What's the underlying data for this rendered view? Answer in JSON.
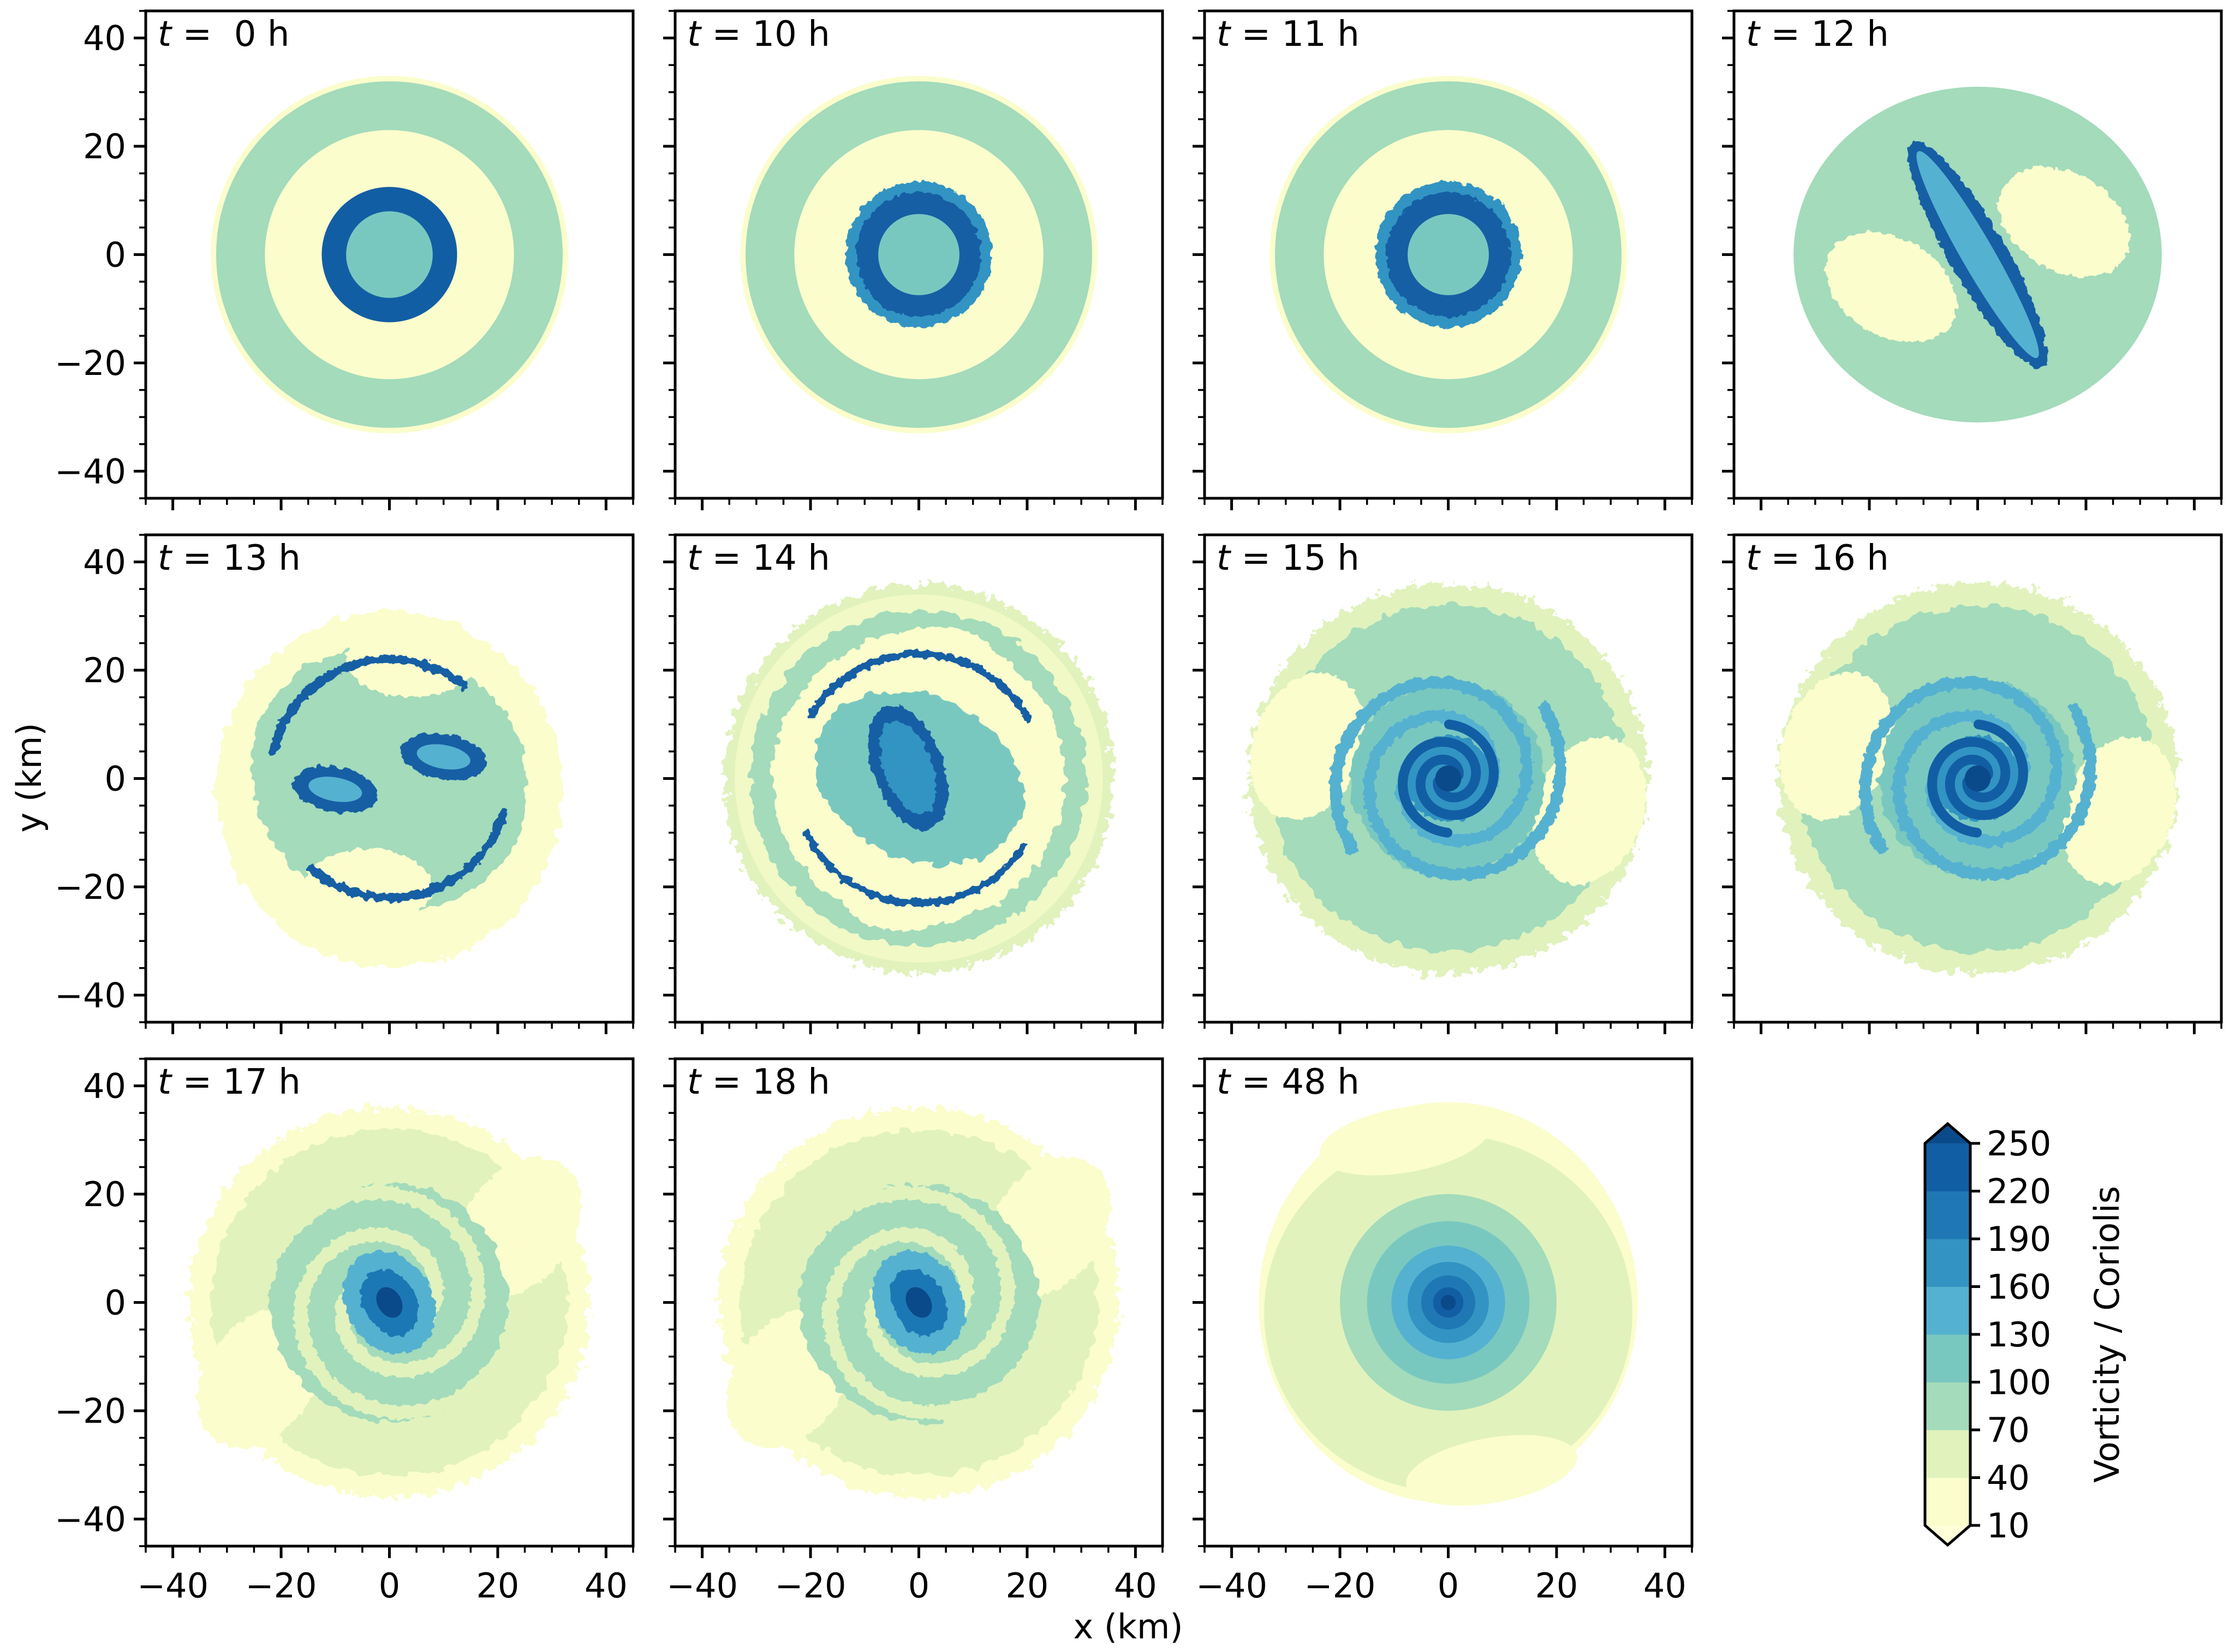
{
  "chart_data": {
    "type": "heatmap",
    "description_units": {
      "xlabel": "x (km)",
      "ylabel": "y (km)",
      "colorbar_label": "Vorticity / Coriolis"
    },
    "xlim": [
      -45,
      45
    ],
    "ylim": [
      -45,
      45
    ],
    "ticks": [
      -40,
      -20,
      0,
      20,
      40
    ],
    "tick_labels": [
      "−40",
      "−20",
      "0",
      "20",
      "40"
    ],
    "colorbar": {
      "levels": [
        10,
        40,
        70,
        100,
        130,
        160,
        190,
        220,
        250
      ],
      "level_labels": [
        "10",
        "40",
        "70",
        "100",
        "130",
        "160",
        "190",
        "220",
        "250"
      ],
      "colors": [
        "#fbfdcc",
        "#e1f2bd",
        "#a3dbbb",
        "#79c8c0",
        "#54b1d0",
        "#3394c3",
        "#1f78b4",
        "#125ea4",
        "#0b4a8a"
      ],
      "extend": "both"
    },
    "panels": [
      {
        "label_t": "t",
        "label_rest": " =  0 h",
        "pattern": "rings"
      },
      {
        "label_t": "t",
        "label_rest": " = 10 h",
        "pattern": "rings-perturbed"
      },
      {
        "label_t": "t",
        "label_rest": " = 11 h",
        "pattern": "rings-perturbed"
      },
      {
        "label_t": "t",
        "label_rest": " = 12 h",
        "pattern": "elongated"
      },
      {
        "label_t": "t",
        "label_rest": " = 13 h",
        "pattern": "two-vortices"
      },
      {
        "label_t": "t",
        "label_rest": " = 14 h",
        "pattern": "merging"
      },
      {
        "label_t": "t",
        "label_rest": " = 15 h",
        "pattern": "spiral"
      },
      {
        "label_t": "t",
        "label_rest": " = 16 h",
        "pattern": "spiral"
      },
      {
        "label_t": "t",
        "label_rest": " = 17 h",
        "pattern": "spiral-weak"
      },
      {
        "label_t": "t",
        "label_rest": " = 18 h",
        "pattern": "spiral-weak"
      },
      {
        "label_t": "t",
        "label_rest": " = 48 h",
        "pattern": "monopole"
      }
    ]
  }
}
